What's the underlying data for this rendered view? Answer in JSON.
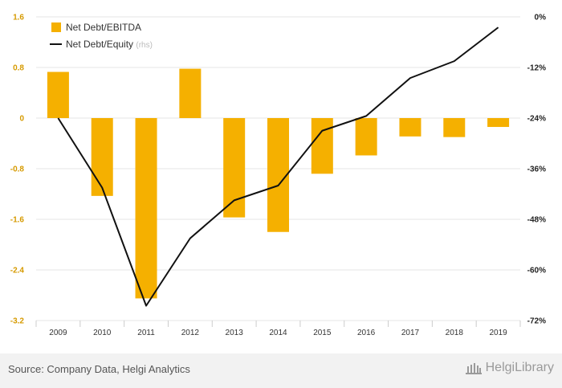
{
  "chart_data": {
    "type": "bar",
    "categories": [
      "2009",
      "2010",
      "2011",
      "2012",
      "2013",
      "2014",
      "2015",
      "2016",
      "2017",
      "2018",
      "2019"
    ],
    "series": [
      {
        "name": "Net Debt/EBITDA",
        "type": "bar",
        "axis": "left",
        "color": "#f5b000",
        "values": [
          0.73,
          -1.23,
          -2.85,
          0.78,
          -1.57,
          -1.8,
          -0.88,
          -0.59,
          -0.29,
          -0.3,
          -0.14
        ]
      },
      {
        "name": "Net Debt/Equity",
        "name_suffix": "(rhs)",
        "type": "line",
        "axis": "right",
        "color": "#111111",
        "values": [
          -24.0,
          -40.5,
          -68.5,
          -52.5,
          -43.5,
          -40.0,
          -27.0,
          -23.5,
          -14.5,
          -10.5,
          -2.5
        ]
      }
    ],
    "left_axis": {
      "ticks": [
        1.6,
        0.8,
        0,
        -0.8,
        -1.6,
        -2.4,
        -3.2
      ],
      "tick_labels": [
        "1.6",
        "0.8",
        "0",
        "-0.8",
        "-1.6",
        "-2.4",
        "-3.2"
      ],
      "ylim": [
        -3.2,
        1.6
      ],
      "color": "#d69a00"
    },
    "right_axis": {
      "ticks": [
        0,
        -12,
        -24,
        -36,
        -48,
        -60,
        -72
      ],
      "tick_labels": [
        "0%",
        "-12%",
        "-24%",
        "-36%",
        "-48%",
        "-60%",
        "-72%"
      ],
      "ylim": [
        -72,
        0
      ],
      "color": "#222222"
    },
    "grid": true,
    "legend_position": "top-left"
  },
  "footer": {
    "source": "Source: Company Data, Helgi Analytics",
    "brand": "HelgiLibrary",
    "brand_icon": "library-building-icon"
  }
}
